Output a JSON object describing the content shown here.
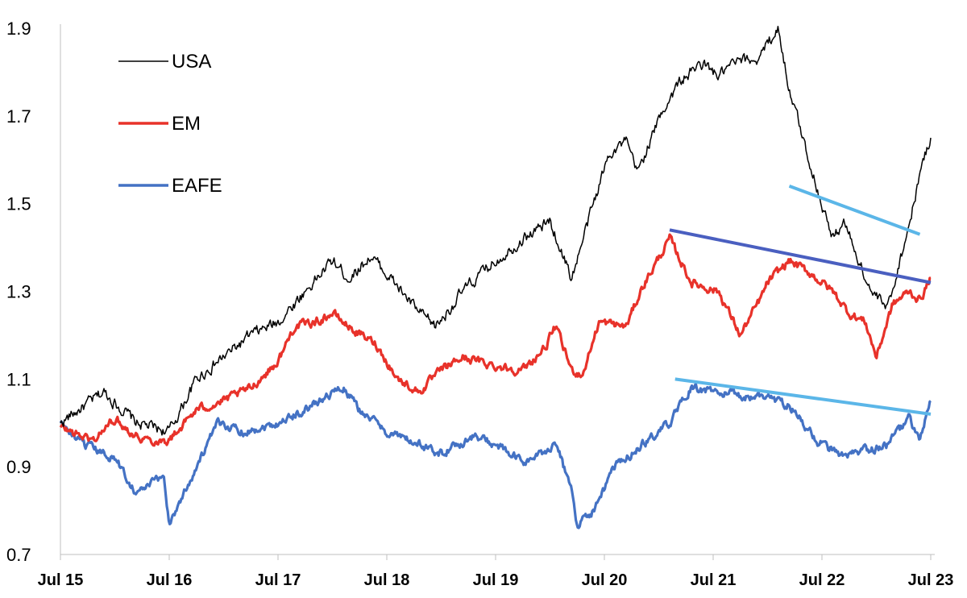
{
  "chart_data": {
    "type": "line",
    "title": "",
    "xlabel": "",
    "ylabel": "",
    "ylim": [
      0.7,
      1.9
    ],
    "yticks": [
      "0.7",
      "0.9",
      "1.1",
      "1.3",
      "1.5",
      "1.7",
      "1.9"
    ],
    "xlim": [
      2015.5,
      2023.5
    ],
    "xticks": [
      {
        "label": "Jul 15",
        "value": 2015.5
      },
      {
        "label": "Jul 16",
        "value": 2016.5
      },
      {
        "label": "Jul 17",
        "value": 2017.5
      },
      {
        "label": "Jul 18",
        "value": 2018.5
      },
      {
        "label": "Jul 19",
        "value": 2019.5
      },
      {
        "label": "Jul 20",
        "value": 2020.5
      },
      {
        "label": "Jul 21",
        "value": 2021.5
      },
      {
        "label": "Jul 22",
        "value": 2022.5
      },
      {
        "label": "Jul 23",
        "value": 2023.5
      }
    ],
    "legend_position": "top-left",
    "series": [
      {
        "name": "USA",
        "color": "#000000",
        "x": [
          2015.5,
          2015.9,
          2016.2,
          2016.5,
          2016.75,
          2017.0,
          2017.25,
          2017.5,
          2017.75,
          2018.0,
          2018.15,
          2018.35,
          2018.5,
          2018.8,
          2018.95,
          2019.2,
          2019.5,
          2019.75,
          2020.0,
          2020.2,
          2020.4,
          2020.55,
          2020.7,
          2020.8,
          2021.05,
          2021.2,
          2021.4,
          2021.55,
          2021.7,
          2021.9,
          2022.1,
          2022.2,
          2022.45,
          2022.6,
          2022.7,
          2022.95,
          2023.1,
          2023.3,
          2023.4,
          2023.5
        ],
        "values": [
          1.0,
          1.07,
          1.0,
          0.98,
          1.1,
          1.15,
          1.2,
          1.23,
          1.3,
          1.37,
          1.33,
          1.38,
          1.34,
          1.25,
          1.22,
          1.3,
          1.37,
          1.42,
          1.46,
          1.33,
          1.5,
          1.62,
          1.64,
          1.57,
          1.72,
          1.78,
          1.82,
          1.79,
          1.82,
          1.83,
          1.9,
          1.76,
          1.54,
          1.42,
          1.46,
          1.3,
          1.26,
          1.45,
          1.57,
          1.65
        ]
      },
      {
        "name": "EM",
        "color": "#e8322a",
        "x": [
          2015.5,
          2015.8,
          2016.0,
          2016.2,
          2016.35,
          2016.5,
          2016.75,
          2017.0,
          2017.25,
          2017.5,
          2017.65,
          2017.85,
          2018.0,
          2018.2,
          2018.4,
          2018.6,
          2018.8,
          2019.0,
          2019.2,
          2019.5,
          2019.75,
          2019.95,
          2020.05,
          2020.2,
          2020.3,
          2020.45,
          2020.7,
          2020.85,
          2021.1,
          2021.3,
          2021.55,
          2021.75,
          2021.95,
          2022.0,
          2022.2,
          2022.4,
          2022.6,
          2022.75,
          2022.9,
          2023.0,
          2023.15,
          2023.3,
          2023.4,
          2023.5
        ],
        "values": [
          0.99,
          0.96,
          1.01,
          0.97,
          0.96,
          0.96,
          1.03,
          1.05,
          1.08,
          1.14,
          1.22,
          1.23,
          1.25,
          1.21,
          1.18,
          1.1,
          1.07,
          1.12,
          1.15,
          1.13,
          1.12,
          1.17,
          1.22,
          1.12,
          1.11,
          1.23,
          1.22,
          1.31,
          1.42,
          1.32,
          1.3,
          1.2,
          1.29,
          1.32,
          1.37,
          1.34,
          1.3,
          1.25,
          1.23,
          1.15,
          1.27,
          1.3,
          1.28,
          1.33
        ]
      },
      {
        "name": "EAFE",
        "color": "#4472c4",
        "x": [
          2015.5,
          2015.7,
          2016.0,
          2016.2,
          2016.45,
          2016.5,
          2016.75,
          2016.95,
          2017.2,
          2017.5,
          2017.75,
          2018.0,
          2018.1,
          2018.25,
          2018.5,
          2018.8,
          2019.0,
          2019.3,
          2019.5,
          2019.75,
          2019.95,
          2020.05,
          2020.2,
          2020.25,
          2020.4,
          2020.6,
          2020.85,
          2021.1,
          2021.3,
          2021.55,
          2021.8,
          2022.0,
          2022.2,
          2022.45,
          2022.7,
          2022.95,
          2023.1,
          2023.3,
          2023.4,
          2023.5
        ],
        "values": [
          1.0,
          0.95,
          0.92,
          0.84,
          0.88,
          0.77,
          0.9,
          1.0,
          0.98,
          1.0,
          1.03,
          1.07,
          1.08,
          1.03,
          0.98,
          0.95,
          0.93,
          0.97,
          0.95,
          0.91,
          0.93,
          0.96,
          0.84,
          0.77,
          0.8,
          0.9,
          0.95,
          1.0,
          1.08,
          1.07,
          1.06,
          1.06,
          1.04,
          0.96,
          0.92,
          0.94,
          0.95,
          1.01,
          0.96,
          1.05
        ]
      }
    ],
    "trendlines": [
      {
        "color": "#5bb6e8",
        "x": [
          2022.2,
          2023.4
        ],
        "values": [
          1.54,
          1.43
        ]
      },
      {
        "color": "#4a5fc0",
        "x": [
          2021.1,
          2023.5
        ],
        "values": [
          1.44,
          1.32
        ]
      },
      {
        "color": "#5bb6e8",
        "x": [
          2021.15,
          2023.5
        ],
        "values": [
          1.1,
          1.02
        ]
      }
    ]
  }
}
